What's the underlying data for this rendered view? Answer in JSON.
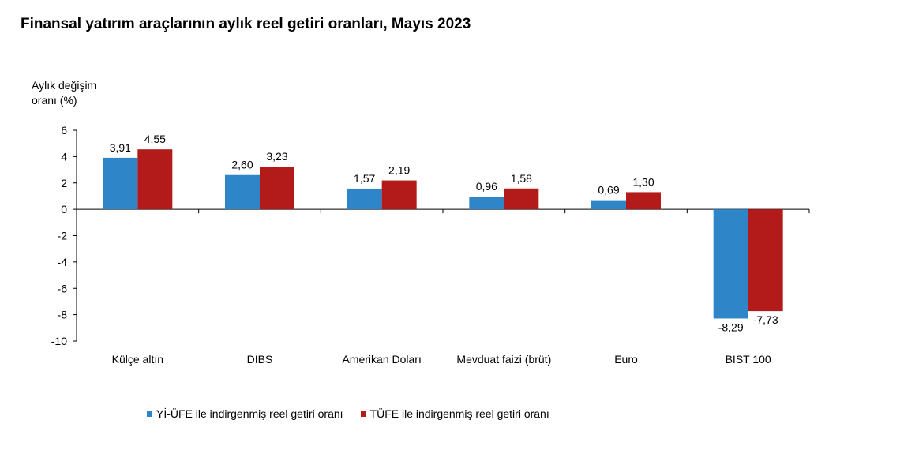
{
  "chart_data": {
    "type": "bar",
    "title": "Finansal yatırım araçlarının aylık reel getiri oranları, Mayıs 2023",
    "ylabel": "Aylık değişim oranı (%)",
    "ylabel_lines": [
      "Aylık değişim",
      "oranı (%)"
    ],
    "xlabel": "",
    "ylim": [
      -10,
      6
    ],
    "yticks": [
      6,
      4,
      2,
      0,
      -2,
      -4,
      -6,
      -8,
      -10
    ],
    "categories": [
      "Külçe altın",
      "DİBS",
      "Amerikan Doları",
      "Mevduat faizi (brüt)",
      "Euro",
      "BIST 100"
    ],
    "series": [
      {
        "name": "Yİ-ÜFE ile indirgenmiş reel getiri oranı",
        "color": "#2e86c8",
        "values": [
          3.91,
          2.6,
          1.57,
          0.96,
          0.69,
          -8.29
        ],
        "labels": [
          "3,91",
          "2,60",
          "1,57",
          "0,96",
          "0,69",
          "-8,29"
        ]
      },
      {
        "name": "TÜFE ile indirgenmiş reel getiri oranı",
        "color": "#b31b1b",
        "values": [
          4.55,
          3.23,
          2.19,
          1.58,
          1.3,
          -7.73
        ],
        "labels": [
          "4,55",
          "3,23",
          "2,19",
          "1,58",
          "1,30",
          "-7,73"
        ]
      }
    ],
    "grid": false,
    "legend_position": "bottom"
  }
}
